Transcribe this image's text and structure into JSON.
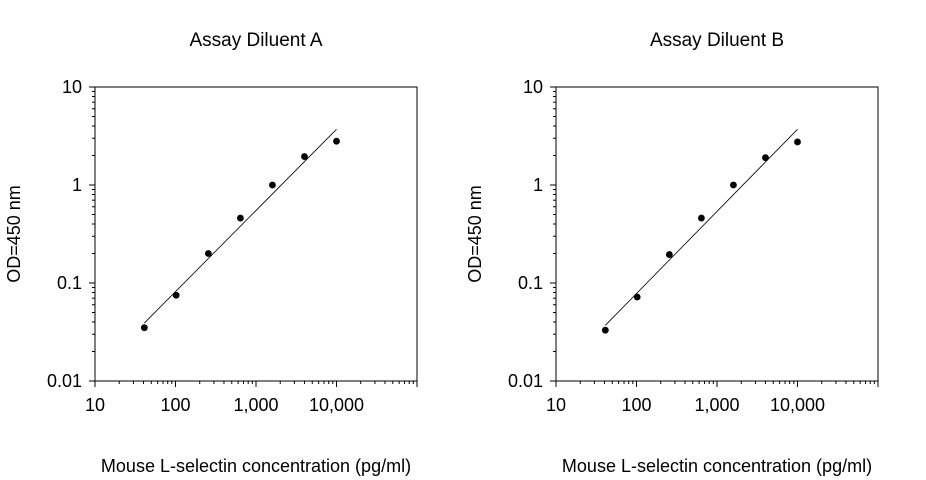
{
  "chart_data": [
    {
      "type": "scatter",
      "title": "Assay Diluent A",
      "xlabel": "Mouse L-selectin concentration (pg/ml)",
      "ylabel": "OD=450 nm",
      "x_scale": "log",
      "y_scale": "log",
      "xlim": [
        10,
        100000
      ],
      "ylim": [
        0.01,
        10
      ],
      "x_ticks": [
        10,
        100,
        1000,
        10000
      ],
      "x_tick_labels": [
        "10",
        "100",
        "1,000",
        "10,000"
      ],
      "y_ticks": [
        0.01,
        0.1,
        1,
        10
      ],
      "y_tick_labels": [
        "0.01",
        "0.1",
        "1",
        "10"
      ],
      "grid": false,
      "series": [
        {
          "x": [
            41,
            102,
            256,
            640,
            1600,
            4000,
            10000
          ],
          "y": [
            0.035,
            0.075,
            0.2,
            0.46,
            1.0,
            1.95,
            2.8
          ]
        }
      ],
      "fit_line": {
        "x": [
          41,
          10000
        ],
        "y": [
          0.039,
          3.7
        ]
      }
    },
    {
      "type": "scatter",
      "title": "Assay Diluent B",
      "xlabel": "Mouse L-selectin concentration (pg/ml)",
      "ylabel": "OD=450 nm",
      "x_scale": "log",
      "y_scale": "log",
      "xlim": [
        10,
        100000
      ],
      "ylim": [
        0.01,
        10
      ],
      "x_ticks": [
        10,
        100,
        1000,
        10000
      ],
      "x_tick_labels": [
        "10",
        "100",
        "1,000",
        "10,000"
      ],
      "y_ticks": [
        0.01,
        0.1,
        1,
        10
      ],
      "y_tick_labels": [
        "0.01",
        "0.1",
        "1",
        "10"
      ],
      "grid": false,
      "series": [
        {
          "x": [
            41,
            102,
            256,
            640,
            1600,
            4000,
            10000
          ],
          "y": [
            0.033,
            0.072,
            0.195,
            0.46,
            1.0,
            1.9,
            2.75
          ]
        }
      ],
      "fit_line": {
        "x": [
          41,
          10000
        ],
        "y": [
          0.037,
          3.7
        ]
      }
    }
  ]
}
